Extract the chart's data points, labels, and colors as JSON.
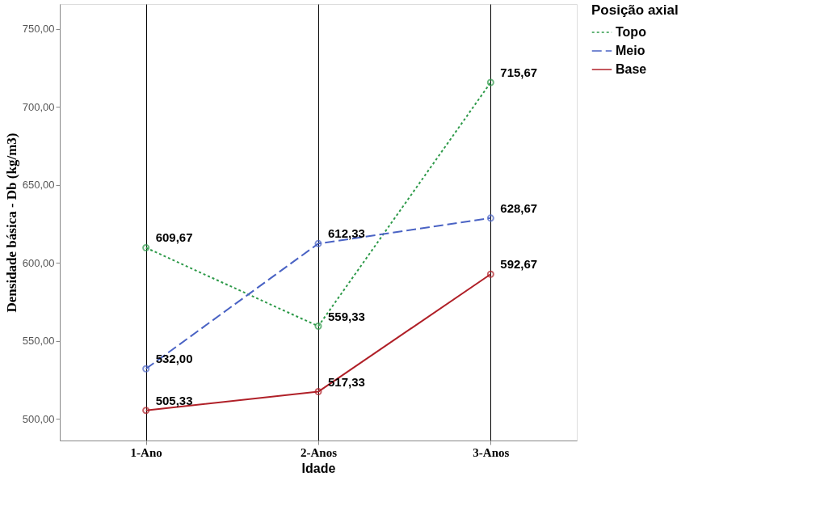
{
  "chart_data": {
    "type": "line",
    "xlabel": "Idade",
    "ylabel": "Densidade básica - Db (kg/m3)",
    "legend_title": "Posição axial",
    "categories": [
      "1-Ano",
      "2-Anos",
      "3-Anos"
    ],
    "series": [
      {
        "name": "Topo",
        "color": "#2e9a4a",
        "line_style": "dotted",
        "values": [
          609.67,
          559.33,
          715.67
        ],
        "value_labels": [
          "609,67",
          "559,33",
          "715,67"
        ]
      },
      {
        "name": "Meio",
        "color": "#4a63c4",
        "line_style": "dashed",
        "values": [
          532.0,
          612.33,
          628.67
        ],
        "value_labels": [
          "532,00",
          "612,33",
          "628,67"
        ]
      },
      {
        "name": "Base",
        "color": "#b02028",
        "line_style": "solid",
        "values": [
          505.33,
          517.33,
          592.67
        ],
        "value_labels": [
          "505,33",
          "517,33",
          "592,67"
        ]
      }
    ],
    "ylim": [
      486,
      766
    ],
    "yticks": [
      {
        "value": 500,
        "label": "500,00"
      },
      {
        "value": 550,
        "label": "550,00"
      },
      {
        "value": 600,
        "label": "600,00"
      },
      {
        "value": 650,
        "label": "650,00"
      },
      {
        "value": 700,
        "label": "700,00"
      },
      {
        "value": 750,
        "label": "750,00"
      }
    ],
    "grid": "x",
    "legend": "right",
    "marker": "circle"
  }
}
